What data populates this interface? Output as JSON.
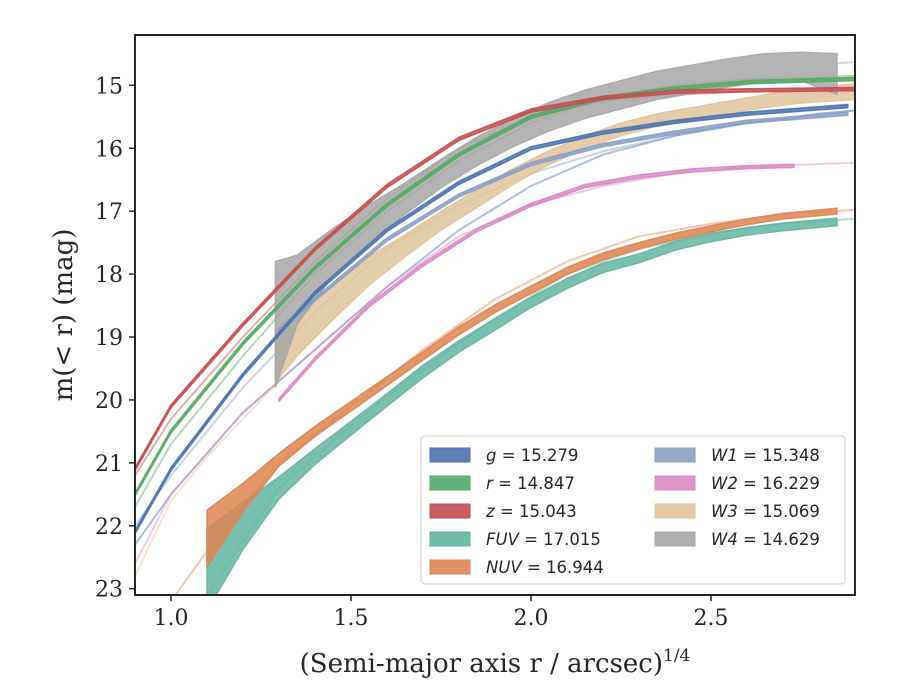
{
  "chart_data": {
    "type": "line",
    "xlabel": "(Semi-major axis r / arcsec)",
    "xlabel_var": "r",
    "xlabel_sup": "1/4",
    "ylabel": "m(< r) (mag)",
    "xlim": [
      0.9,
      2.9
    ],
    "ylim": [
      23.1,
      14.2
    ],
    "y_inverted": true,
    "grid": false,
    "legend_position": "lower-right",
    "xticks": [
      1.0,
      1.5,
      2.0,
      2.5
    ],
    "xtick_labels": [
      "1.0",
      "1.5",
      "2.0",
      "2.5"
    ],
    "yticks": [
      15,
      16,
      17,
      18,
      19,
      20,
      21,
      22,
      23
    ],
    "ytick_labels": [
      "15",
      "16",
      "17",
      "18",
      "19",
      "20",
      "21",
      "22",
      "23"
    ],
    "series": [
      {
        "name": "g",
        "value": "15.279",
        "color": "#4c72b0",
        "band_width": 0.05,
        "faint_x": [
          0.9,
          1.0,
          1.2,
          1.4,
          1.6,
          1.8,
          2.0,
          2.2,
          2.4,
          2.6,
          2.8,
          2.9
        ],
        "faint_y": [
          22.3,
          21.5,
          20.2,
          19.2,
          18.2,
          17.3,
          16.6,
          16.1,
          15.8,
          15.6,
          15.45,
          15.4
        ],
        "main_x": [
          0.9,
          1.0,
          1.2,
          1.4,
          1.6,
          1.8,
          2.0,
          2.2,
          2.4,
          2.6,
          2.88
        ],
        "main_y": [
          22.1,
          21.1,
          19.6,
          18.3,
          17.3,
          16.55,
          16.0,
          15.75,
          15.58,
          15.45,
          15.33
        ]
      },
      {
        "name": "r",
        "value": "14.847",
        "color": "#55a868",
        "band_width": 0.05,
        "faint_x": [
          0.9,
          1.0,
          1.2,
          1.4,
          1.6,
          1.8,
          2.0,
          2.2,
          2.4,
          2.6,
          2.8,
          2.9
        ],
        "faint_y": [
          21.7,
          20.7,
          19.3,
          18.0,
          17.0,
          16.2,
          15.6,
          15.2,
          15.0,
          14.9,
          14.87,
          14.85
        ],
        "main_x": [
          0.9,
          1.0,
          1.2,
          1.4,
          1.6,
          1.8,
          2.0,
          2.2,
          2.4,
          2.6,
          2.9
        ],
        "main_y": [
          21.5,
          20.5,
          19.1,
          17.9,
          16.9,
          16.1,
          15.5,
          15.2,
          15.05,
          14.95,
          14.9
        ]
      },
      {
        "name": "z",
        "value": "15.043",
        "color": "#c44e52",
        "band_width": 0.05,
        "faint_x": [
          0.9,
          1.0,
          1.2,
          1.4,
          1.6,
          1.8,
          2.0,
          2.2,
          2.4,
          2.6,
          2.8,
          2.9
        ],
        "faint_y": [
          21.2,
          20.3,
          19.0,
          17.8,
          16.8,
          16.0,
          15.5,
          15.25,
          15.15,
          15.1,
          15.08,
          15.07
        ],
        "main_x": [
          0.9,
          1.0,
          1.2,
          1.4,
          1.6,
          1.8,
          2.0,
          2.2,
          2.4,
          2.6,
          2.9
        ],
        "main_y": [
          21.1,
          20.1,
          18.8,
          17.6,
          16.6,
          15.85,
          15.4,
          15.2,
          15.1,
          15.08,
          15.06
        ]
      },
      {
        "name": "FUV",
        "value": "17.015",
        "color": "#64b5a0",
        "band_width": 0.12,
        "faint_x": [
          1.0,
          1.1,
          1.3,
          1.5,
          1.7,
          1.9,
          2.1,
          2.3,
          2.5,
          2.7,
          2.9
        ],
        "faint_y": [
          23.2,
          23.1,
          21.4,
          20.4,
          19.5,
          18.7,
          18.0,
          17.6,
          17.35,
          17.2,
          17.12
        ],
        "main_x": [
          1.1,
          1.2,
          1.3,
          1.4,
          1.5,
          1.6,
          1.7,
          1.8,
          1.9,
          2.0,
          2.1,
          2.2,
          2.3,
          2.4,
          2.5,
          2.6,
          2.7,
          2.85
        ],
        "main_y": [
          22.7,
          22.0,
          21.4,
          20.9,
          20.45,
          20.0,
          19.55,
          19.15,
          18.8,
          18.45,
          18.15,
          17.9,
          17.75,
          17.55,
          17.42,
          17.32,
          17.25,
          17.17
        ],
        "main_w": [
          1.3,
          0.75,
          0.35,
          0.25,
          0.22,
          0.2,
          0.2,
          0.18,
          0.18,
          0.16,
          0.16,
          0.15,
          0.14,
          0.14,
          0.13,
          0.12,
          0.12,
          0.12
        ]
      },
      {
        "name": "NUV",
        "value": "16.944",
        "color": "#dd8452",
        "band_width": 0.12,
        "faint_x": [
          0.9,
          1.0,
          1.1,
          1.3,
          1.5,
          1.7,
          1.9,
          2.1,
          2.3,
          2.5,
          2.7,
          2.9
        ],
        "faint_y": [
          23.3,
          23.2,
          22.4,
          21.0,
          20.1,
          19.2,
          18.4,
          17.8,
          17.4,
          17.2,
          17.05,
          16.98
        ],
        "main_x": [
          1.1,
          1.2,
          1.3,
          1.4,
          1.5,
          1.6,
          1.7,
          1.8,
          1.9,
          2.0,
          2.1,
          2.2,
          2.3,
          2.4,
          2.5,
          2.6,
          2.7,
          2.85
        ],
        "main_y": [
          22.2,
          21.55,
          20.95,
          20.5,
          20.1,
          19.7,
          19.3,
          18.9,
          18.55,
          18.25,
          17.95,
          17.72,
          17.55,
          17.4,
          17.28,
          17.17,
          17.08,
          17.0
        ],
        "main_w": [
          0.9,
          0.45,
          0.2,
          0.16,
          0.15,
          0.14,
          0.13,
          0.13,
          0.12,
          0.12,
          0.11,
          0.11,
          0.1,
          0.1,
          0.1,
          0.09,
          0.09,
          0.09
        ]
      },
      {
        "name": "W1",
        "value": "15.348",
        "color": "#8c9ec5",
        "band_width": 0.05,
        "faint_x": [
          0.9,
          1.0,
          1.2,
          1.4,
          1.6,
          1.8,
          2.0,
          2.2,
          2.4,
          2.6,
          2.8,
          2.9
        ],
        "faint_y": [
          22.0,
          21.2,
          19.8,
          18.6,
          17.6,
          16.9,
          16.4,
          16.05,
          15.8,
          15.6,
          15.45,
          15.4
        ],
        "main_x": [
          1.3,
          1.4,
          1.6,
          1.8,
          2.0,
          2.2,
          2.4,
          2.6,
          2.88
        ],
        "main_y": [
          18.9,
          18.4,
          17.45,
          16.75,
          16.25,
          15.95,
          15.75,
          15.58,
          15.45
        ]
      },
      {
        "name": "W2",
        "value": "16.229",
        "color": "#da8bc3",
        "band_width": 0.05,
        "faint_x": [
          0.9,
          1.0,
          1.2,
          1.4,
          1.6,
          1.8,
          2.0,
          2.2,
          2.4,
          2.6,
          2.8,
          2.9
        ],
        "faint_y": [
          22.6,
          21.5,
          20.2,
          19.2,
          18.2,
          17.4,
          16.9,
          16.6,
          16.4,
          16.3,
          16.25,
          16.23
        ],
        "main_x": [
          1.3,
          1.4,
          1.55,
          1.7,
          1.85,
          2.0,
          2.15,
          2.3,
          2.45,
          2.6,
          2.73
        ],
        "main_y": [
          20.0,
          19.35,
          18.5,
          17.85,
          17.3,
          16.9,
          16.6,
          16.45,
          16.35,
          16.3,
          16.28
        ]
      },
      {
        "name": "W3",
        "value": "15.069",
        "color": "#e0c49a",
        "band_width": 0.1,
        "faint_x": [
          0.9,
          1.0,
          1.1,
          1.2,
          1.3
        ],
        "faint_y": [
          22.8,
          21.6,
          20.9,
          20.3,
          19.7
        ],
        "main_x": [
          1.29,
          1.35,
          1.45,
          1.55,
          1.65,
          1.75,
          1.85,
          1.95,
          2.05,
          2.15,
          2.25,
          2.35,
          2.45,
          2.55,
          2.65,
          2.75,
          2.9
        ],
        "main_y": [
          19.3,
          18.95,
          18.45,
          17.95,
          17.55,
          17.15,
          16.8,
          16.45,
          16.15,
          15.9,
          15.7,
          15.55,
          15.45,
          15.35,
          15.25,
          15.17,
          15.1
        ],
        "main_w": [
          0.85,
          0.7,
          0.55,
          0.45,
          0.35,
          0.3,
          0.28,
          0.25,
          0.22,
          0.2,
          0.2,
          0.2,
          0.2,
          0.2,
          0.2,
          0.22,
          0.25
        ]
      },
      {
        "name": "W4",
        "value": "14.629",
        "color": "#a7a7a7",
        "band_width": 0.1,
        "faint_x": [
          2.85,
          2.9
        ],
        "faint_y": [
          14.65,
          14.63
        ],
        "main_x": [
          1.29,
          1.35,
          1.45,
          1.55,
          1.65,
          1.75,
          1.85,
          1.95,
          2.05,
          2.15,
          2.25,
          2.35,
          2.45,
          2.55,
          2.65,
          2.75,
          2.85
        ],
        "main_y": [
          18.8,
          18.25,
          17.65,
          17.2,
          16.8,
          16.4,
          16.05,
          15.75,
          15.5,
          15.3,
          15.15,
          15.0,
          14.9,
          14.8,
          14.72,
          14.7,
          14.82
        ],
        "main_w": [
          2.0,
          1.1,
          0.75,
          0.6,
          0.5,
          0.45,
          0.45,
          0.45,
          0.45,
          0.45,
          0.45,
          0.45,
          0.45,
          0.45,
          0.45,
          0.45,
          0.65
        ]
      }
    ]
  }
}
